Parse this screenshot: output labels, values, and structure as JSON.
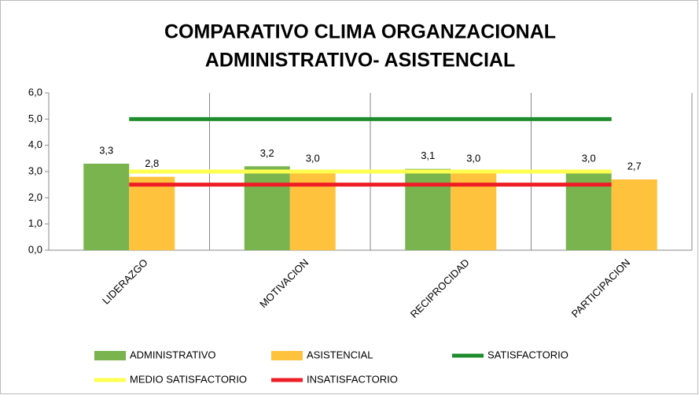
{
  "chart_data": {
    "type": "bar",
    "title": [
      "COMPARATIVO CLIMA ORGANZACIONAL",
      "ADMINISTRATIVO- ASISTENCIAL"
    ],
    "categories": [
      "LIDERAZGO",
      "MOTIVACION",
      "RECIPROCIDAD",
      "PARTICIPACION"
    ],
    "series": [
      {
        "name": "ADMINISTRATIVO",
        "type": "bar",
        "color": "#79b44f",
        "values": [
          3.3,
          3.2,
          3.1,
          3.0
        ],
        "value_labels": [
          "3,3",
          "3,2",
          "3,1",
          "3,0"
        ]
      },
      {
        "name": "ASISTENCIAL",
        "type": "bar",
        "color": "#ffc23c",
        "values": [
          2.8,
          3.0,
          3.0,
          2.7
        ],
        "value_labels": [
          "2,8",
          "3,0",
          "3,0",
          "2,7"
        ]
      },
      {
        "name": "SATISFACTORIO",
        "type": "line",
        "color": "#1e8c2c",
        "values": [
          5.0,
          5.0,
          5.0,
          5.0
        ]
      },
      {
        "name": "MEDIO SATISFACTORIO",
        "type": "line",
        "color": "#ffff50",
        "values": [
          3.0,
          3.0,
          3.0,
          3.0
        ]
      },
      {
        "name": "INSATISFACTORIO",
        "type": "line",
        "color": "#ee1d25",
        "values": [
          2.5,
          2.5,
          2.5,
          2.5
        ]
      }
    ],
    "ylim": [
      0,
      6
    ],
    "yticks": [
      {
        "value": 0,
        "label": "0,0"
      },
      {
        "value": 1,
        "label": "1,0"
      },
      {
        "value": 2,
        "label": "2,0"
      },
      {
        "value": 3,
        "label": "3,0"
      },
      {
        "value": 4,
        "label": "4,0"
      },
      {
        "value": 5,
        "label": "5,0"
      },
      {
        "value": 6,
        "label": "6,0"
      }
    ],
    "grid": false,
    "legend": "bottom"
  }
}
